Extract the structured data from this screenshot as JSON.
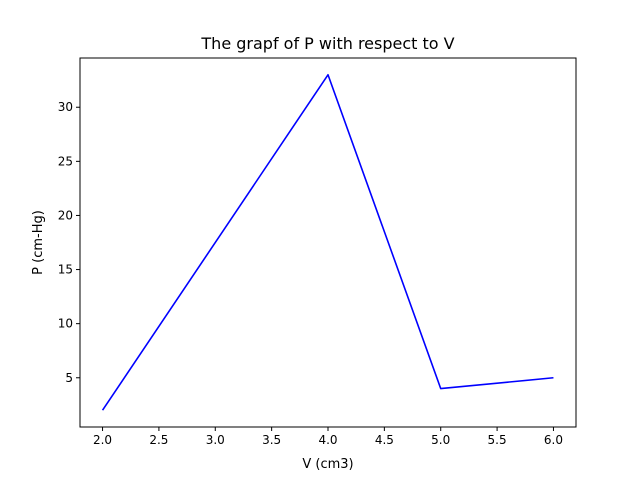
{
  "chart_data": {
    "type": "line",
    "title": "The grapf of P with respect to V",
    "xlabel": "V (cm3)",
    "ylabel": "P (cm-Hg)",
    "x": [
      2,
      4,
      5,
      6
    ],
    "series": [
      {
        "values": [
          2,
          33,
          4,
          5
        ],
        "color": "#0000ff"
      }
    ],
    "xlim": [
      1.8,
      6.2
    ],
    "ylim": [
      0.45,
      34.55
    ],
    "xticks": [
      "2.0",
      "2.5",
      "3.0",
      "3.5",
      "4.0",
      "4.5",
      "5.0",
      "5.5",
      "6.0"
    ],
    "yticks": [
      "5",
      "10",
      "15",
      "20",
      "25",
      "30"
    ],
    "grid": false,
    "legend": "none"
  }
}
